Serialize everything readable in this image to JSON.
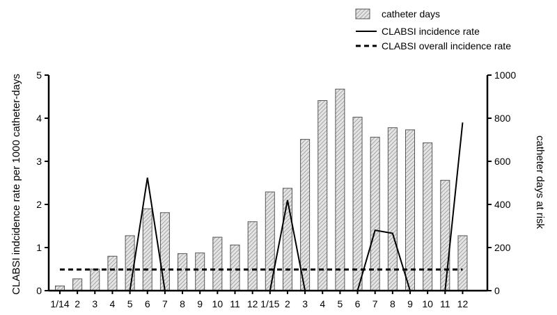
{
  "chart_data": {
    "type": "bar",
    "categories": [
      "1/14",
      "2",
      "3",
      "4",
      "5",
      "6",
      "7",
      "8",
      "9",
      "10",
      "11",
      "12",
      "1/15",
      "2",
      "3",
      "4",
      "5",
      "6",
      "7",
      "8",
      "9",
      "10",
      "11",
      "12"
    ],
    "series": [
      {
        "name": "catheter days",
        "type": "bar",
        "axis": "right",
        "color": "#c8c8c8",
        "values": [
          22,
          55,
          100,
          160,
          255,
          380,
          362,
          172,
          175,
          248,
          212,
          320,
          458,
          475,
          702,
          882,
          935,
          805,
          712,
          756,
          746,
          686,
          512,
          255
        ]
      },
      {
        "name": "CLABSI incidence rate",
        "type": "line",
        "axis": "left",
        "style": "solid",
        "color": "#000000",
        "values": [
          null,
          null,
          null,
          null,
          0,
          2.62,
          0,
          null,
          null,
          null,
          null,
          null,
          0,
          2.1,
          0,
          null,
          null,
          0,
          1.4,
          1.33,
          0,
          null,
          0,
          3.9
        ]
      },
      {
        "name": "CLABSI overall incidence rate",
        "type": "line",
        "axis": "left",
        "style": "dashed",
        "color": "#000000",
        "values": [
          0.49,
          0.49,
          0.49,
          0.49,
          0.49,
          0.49,
          0.49,
          0.49,
          0.49,
          0.49,
          0.49,
          0.49,
          0.49,
          0.49,
          0.49,
          0.49,
          0.49,
          0.49,
          0.49,
          0.49,
          0.49,
          0.49,
          0.49,
          0.49
        ]
      }
    ],
    "y_left": {
      "label": "CLABSI indcidence rate per 1000 catheter-days",
      "range": [
        0,
        5
      ],
      "ticks": [
        "0",
        "1",
        "2",
        "3",
        "4",
        "5"
      ]
    },
    "y_right": {
      "label": "catheter days at risk",
      "range": [
        0,
        1000
      ],
      "ticks": [
        "0",
        "200",
        "400",
        "600",
        "800",
        "1000"
      ]
    },
    "legend": {
      "position": "top-right",
      "entries": [
        "catheter days",
        "CLABSI incidence rate",
        "CLABSI overall incidence rate"
      ]
    },
    "grid": false
  }
}
